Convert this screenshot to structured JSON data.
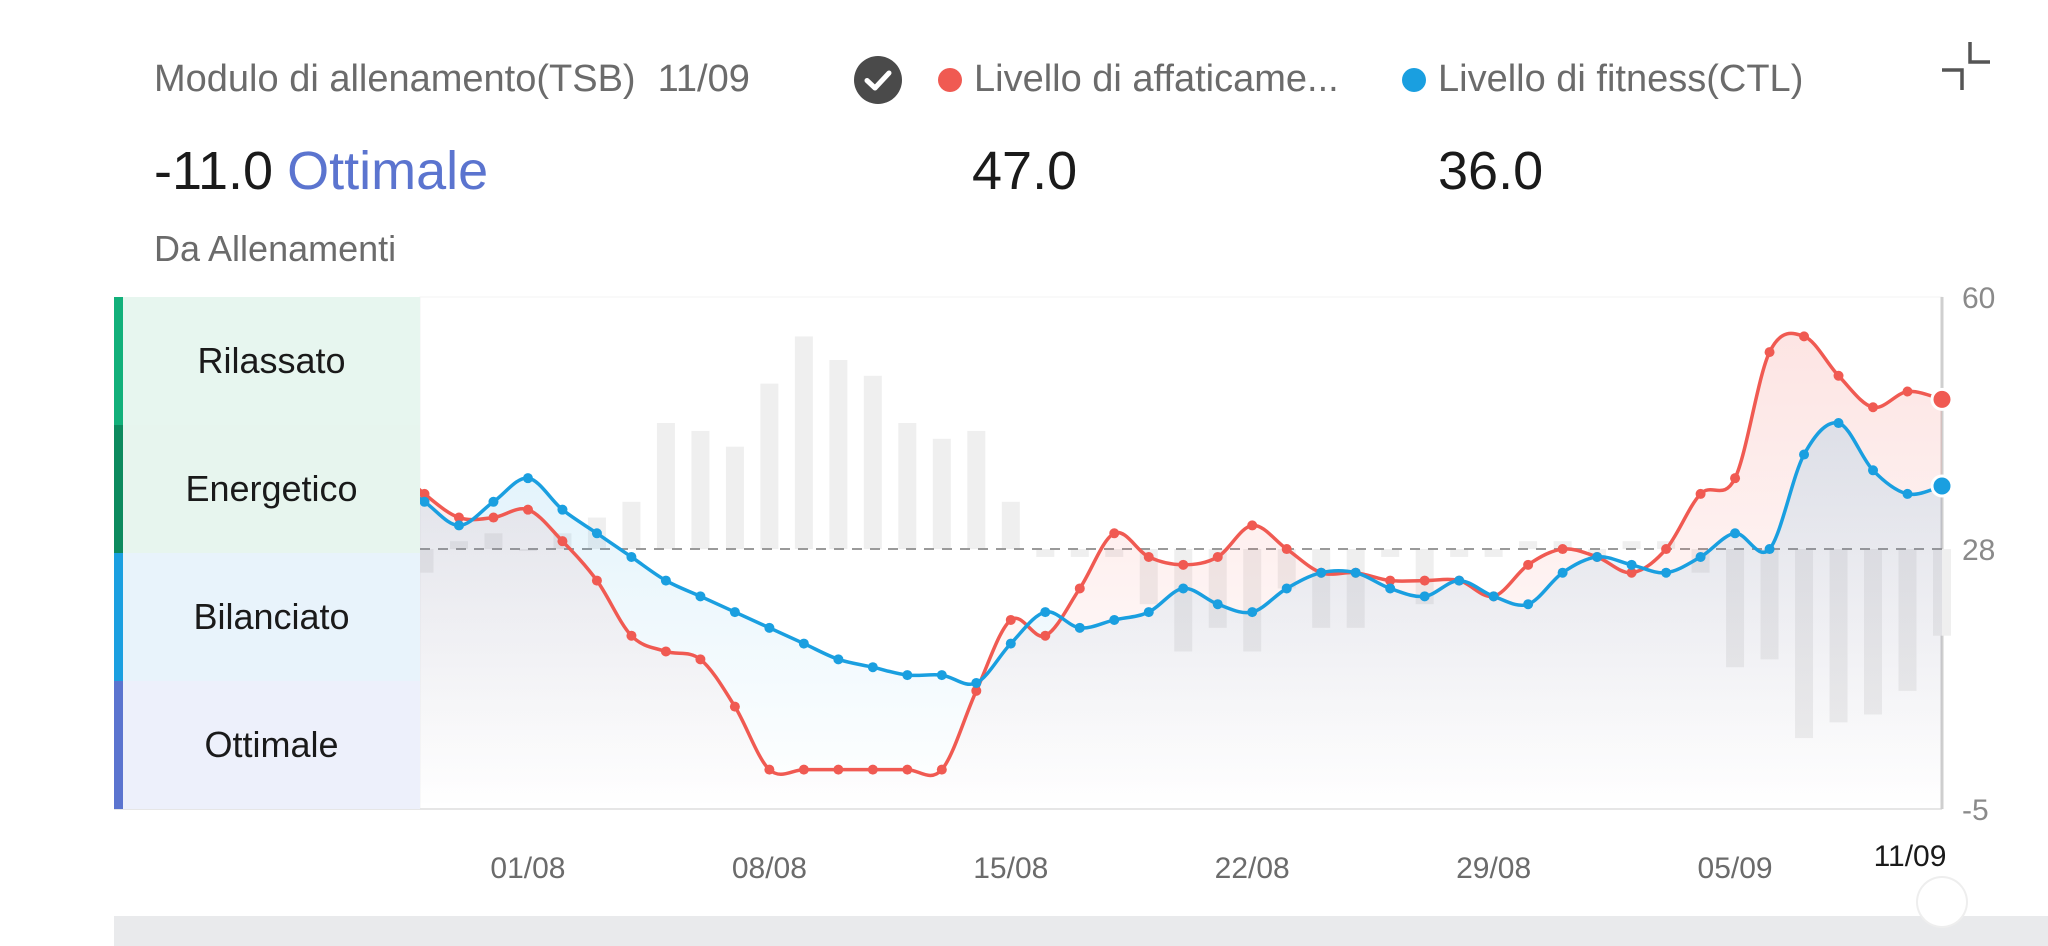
{
  "header": {
    "tsb_title": "Modulo di allenamento(TSB)",
    "tsb_date": "11/09",
    "legend": [
      {
        "label": "Livello di affaticame...",
        "color": "#f05a52"
      },
      {
        "label": "Livello di fitness(CTL)",
        "color": "#1a9fe0"
      }
    ]
  },
  "values": {
    "tsb_value": "-11.0",
    "tsb_status": "Ottimale",
    "fatigue_value": "47.0",
    "fitness_value": "36.0"
  },
  "source_label": "Da Allenamenti",
  "zones": [
    {
      "label": "Rilassato",
      "bar_color": "#12b07a",
      "bg": "#e7f6ef"
    },
    {
      "label": "Energetico",
      "bar_color": "#0d8a5e",
      "bg": "#e7f5ee"
    },
    {
      "label": "Bilanciato",
      "bar_color": "#1a9fe0",
      "bg": "#e8f3fb"
    },
    {
      "label": "Ottimale",
      "bar_color": "#5b74cf",
      "bg": "#edf0fb"
    }
  ],
  "colors": {
    "fatigue": "#f05a52",
    "fitness": "#1a9fe0",
    "status_accent": "#5b74cf",
    "tsb_bars": "#efefef"
  },
  "icons": {
    "check": "check-circle-icon",
    "collapse": "collapse-icon"
  },
  "chart_data": {
    "type": "line",
    "x": [
      "28/07",
      "29/07",
      "30/07",
      "31/07",
      "01/08",
      "02/08",
      "03/08",
      "04/08",
      "05/08",
      "06/08",
      "07/08",
      "08/08",
      "09/08",
      "10/08",
      "11/08",
      "12/08",
      "13/08",
      "14/08",
      "15/08",
      "16/08",
      "17/08",
      "18/08",
      "19/08",
      "20/08",
      "21/08",
      "22/08",
      "23/08",
      "24/08",
      "25/08",
      "26/08",
      "27/08",
      "28/08",
      "29/08",
      "30/08",
      "31/08",
      "01/09",
      "02/09",
      "03/09",
      "04/09",
      "05/09",
      "06/09",
      "07/09",
      "08/09",
      "09/09",
      "10/09",
      "11/09"
    ],
    "xticks": [
      "01/08",
      "08/08",
      "15/08",
      "22/08",
      "29/08",
      "05/09",
      "11/09"
    ],
    "ylim": [
      -5,
      60
    ],
    "yticks": [
      60,
      28,
      -5
    ],
    "baseline": 28,
    "series": [
      {
        "name": "Livello di affaticame...",
        "values": [
          39,
          35,
          32,
          32,
          33,
          29,
          24,
          17,
          15,
          14,
          8,
          0,
          0,
          0,
          0,
          0,
          0,
          10,
          19,
          17,
          23,
          30,
          27,
          26,
          27,
          31,
          28,
          25,
          25,
          24,
          24,
          24,
          22,
          26,
          28,
          27,
          25,
          28,
          35,
          37,
          53,
          55,
          50,
          46,
          48,
          47
        ]
      },
      {
        "name": "Livello di fitness(CTL)",
        "values": [
          37,
          34,
          31,
          34,
          37,
          33,
          30,
          27,
          24,
          22,
          20,
          18,
          16,
          14,
          13,
          12,
          12,
          11,
          16,
          20,
          18,
          19,
          20,
          23,
          21,
          20,
          23,
          25,
          25,
          23,
          22,
          24,
          22,
          21,
          25,
          27,
          26,
          25,
          27,
          30,
          28,
          40,
          44,
          38,
          35,
          36
        ]
      }
    ],
    "tsb_values": [
      2,
      -3,
      1,
      2,
      0,
      2,
      4,
      6,
      16,
      15,
      13,
      21,
      27,
      24,
      22,
      16,
      14,
      15,
      6,
      -1,
      -1,
      -1,
      -7,
      -13,
      -10,
      -13,
      -5,
      -10,
      -10,
      -1,
      -7,
      -1,
      -1,
      1,
      1,
      -1,
      1,
      1,
      -3,
      -15,
      -14,
      -24,
      -22,
      -21,
      -18,
      -11
    ]
  }
}
